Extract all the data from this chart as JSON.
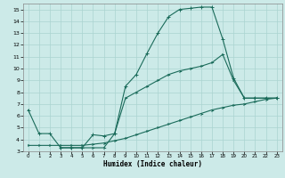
{
  "xlabel": "Humidex (Indice chaleur)",
  "bg_color": "#cceae8",
  "grid_color": "#aad4d0",
  "line_color": "#1a6b5a",
  "xlim": [
    -0.5,
    23.5
  ],
  "ylim": [
    3,
    15.5
  ],
  "xticks": [
    0,
    1,
    2,
    3,
    4,
    5,
    6,
    7,
    8,
    9,
    10,
    11,
    12,
    13,
    14,
    15,
    16,
    17,
    18,
    19,
    20,
    21,
    22,
    23
  ],
  "yticks": [
    3,
    4,
    5,
    6,
    7,
    8,
    9,
    10,
    11,
    12,
    13,
    14,
    15
  ],
  "curve1_x": [
    0,
    1,
    2,
    3,
    4,
    5,
    6,
    7,
    8,
    9,
    10,
    11,
    12,
    13,
    14,
    15,
    16,
    17,
    18,
    19,
    20,
    21,
    22,
    23
  ],
  "curve1_y": [
    6.5,
    4.5,
    4.5,
    3.3,
    3.3,
    3.3,
    4.4,
    4.3,
    4.5,
    8.5,
    9.5,
    11.3,
    13.0,
    14.4,
    15.0,
    15.1,
    15.2,
    15.2,
    12.5,
    9.2,
    7.5,
    7.5,
    7.5,
    7.5
  ],
  "curve2_x": [
    3,
    4,
    5,
    6,
    7,
    8,
    9,
    10,
    11,
    12,
    13,
    14,
    15,
    16,
    17,
    18,
    19,
    20,
    21,
    22,
    23
  ],
  "curve2_y": [
    3.3,
    3.3,
    3.3,
    3.3,
    3.3,
    4.5,
    7.5,
    8.0,
    8.5,
    9.0,
    9.5,
    9.8,
    10.0,
    10.2,
    10.5,
    11.2,
    9.0,
    7.5,
    7.5,
    7.5,
    7.5
  ],
  "curve3_x": [
    0,
    1,
    2,
    3,
    4,
    5,
    6,
    7,
    8,
    9,
    10,
    11,
    12,
    13,
    14,
    15,
    16,
    17,
    18,
    19,
    20,
    21,
    22,
    23
  ],
  "curve3_y": [
    3.5,
    3.5,
    3.5,
    3.5,
    3.5,
    3.5,
    3.6,
    3.7,
    3.9,
    4.1,
    4.4,
    4.7,
    5.0,
    5.3,
    5.6,
    5.9,
    6.2,
    6.5,
    6.7,
    6.9,
    7.0,
    7.2,
    7.4,
    7.5
  ]
}
